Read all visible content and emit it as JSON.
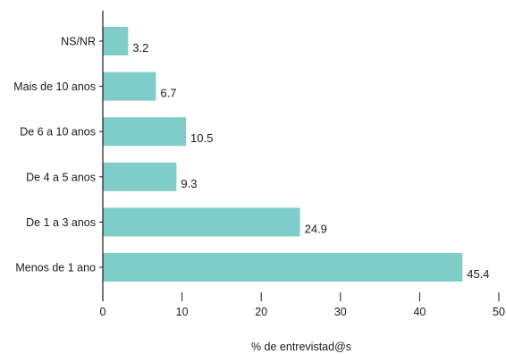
{
  "chart_data": {
    "type": "bar",
    "orientation": "horizontal",
    "categories": [
      "NS/NR",
      "Mais de 10 anos",
      "De 6 a 10 anos",
      "De 4 a 5 anos",
      "De 1 a 3 anos",
      "Menos de 1 ano"
    ],
    "values": [
      3.2,
      6.7,
      10.5,
      9.3,
      24.9,
      45.4
    ],
    "value_labels": [
      "3.2",
      "6.7",
      "10.5",
      "9.3",
      "24.9",
      "45.4"
    ],
    "xlabel": "% de entrevistad@s",
    "ylabel": "",
    "title": "",
    "xlim": [
      0,
      50
    ],
    "xticks": [
      0,
      10,
      20,
      30,
      40,
      50
    ],
    "grid": false,
    "legend": "none",
    "bar_color": "#7ecdc8",
    "axis_color": "#1a1a1a"
  }
}
